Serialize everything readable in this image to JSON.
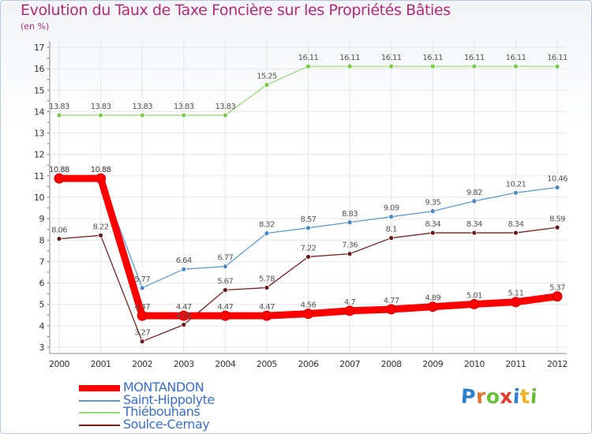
{
  "title": "Evolution du Taux de Taxe Foncière sur les Propriétés Bâties",
  "subtitle": "(en %)",
  "logo": {
    "text": "Proxiti",
    "letter_colors": [
      "#2a7fd0",
      "#e8722a",
      "#6abf3a",
      "#e43a2a",
      "#2a7fd0",
      "#f0b020",
      "#6abf3a"
    ]
  },
  "colors": {
    "axis_text": "#333333",
    "grid": "#e6e6e6",
    "label_text": "#555555"
  },
  "chart_data": {
    "type": "line",
    "title": "Evolution du Taux de Taxe Foncière sur les Propriétés Bâties",
    "ylabel": "(en %)",
    "xlabel": "",
    "x": [
      "2000",
      "2001",
      "2002",
      "2003",
      "2004",
      "2005",
      "2006",
      "2007",
      "2008",
      "2009",
      "2010",
      "2011",
      "2012"
    ],
    "ylim": [
      3,
      17
    ],
    "yticks": [
      "3",
      "4",
      "5",
      "6",
      "7",
      "8",
      "9",
      "10",
      "11",
      "12",
      "13",
      "14",
      "15",
      "16",
      "17"
    ],
    "grid": true,
    "legend_position": "bottom-left",
    "series": [
      {
        "name": "MONTANDON",
        "color": "#ff0000",
        "style": "thick",
        "values": [
          10.88,
          10.88,
          4.47,
          4.47,
          4.47,
          4.47,
          4.56,
          4.7,
          4.77,
          4.89,
          5.01,
          5.11,
          5.37
        ],
        "labels": [
          "10.88",
          "10.88",
          "4.47",
          "4.47",
          "4.47",
          "4.47",
          "4.56",
          "4.7",
          "4.77",
          "4.89",
          "5.01",
          "5.11",
          "5.37"
        ]
      },
      {
        "name": "Saint-Hippolyte",
        "color": "#5b9bd5",
        "marker": "#4a88c8",
        "values": [
          10.88,
          10.88,
          5.77,
          6.64,
          6.77,
          8.32,
          8.57,
          8.83,
          9.09,
          9.35,
          9.82,
          10.21,
          10.46
        ],
        "labels": [
          "10.88",
          "10.88",
          "5.77",
          "6.64",
          "6.77",
          "8.32",
          "8.57",
          "8.83",
          "9.09",
          "9.35",
          "9.82",
          "10.21",
          "10.46"
        ]
      },
      {
        "name": "Thiébouhans",
        "color": "#99dd77",
        "marker": "#77cc44",
        "values": [
          13.83,
          13.83,
          13.83,
          13.83,
          13.83,
          15.25,
          16.11,
          16.11,
          16.11,
          16.11,
          16.11,
          16.11,
          16.11
        ],
        "labels": [
          "13.83",
          "13.83",
          "13.83",
          "13.83",
          "13.83",
          "15.25",
          "16.11",
          "16.11",
          "16.11",
          "16.11",
          "16.11",
          "16.11",
          "16.11"
        ]
      },
      {
        "name": "Soulce-Cernay",
        "color": "#7a2020",
        "marker": "#6a1a1a",
        "values": [
          8.06,
          8.22,
          3.27,
          4.05,
          5.67,
          5.78,
          7.22,
          7.36,
          8.1,
          8.34,
          8.34,
          8.34,
          8.59
        ],
        "labels": [
          "8.06",
          "8.22",
          "3.27",
          "4.05",
          "5.67",
          "5.78",
          "7.22",
          "7.36",
          "8.1",
          "8.34",
          "8.34",
          "8.34",
          "8.59"
        ]
      }
    ]
  }
}
